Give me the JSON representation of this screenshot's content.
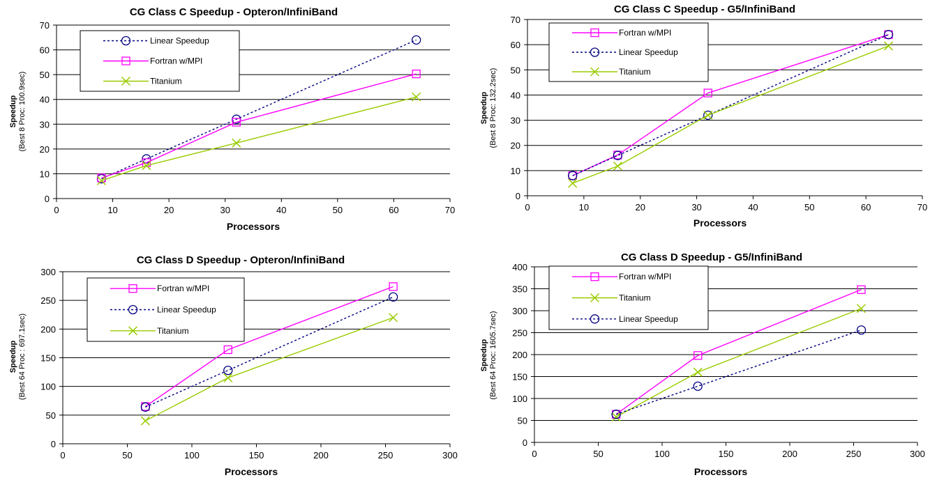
{
  "colors": {
    "fortran": "#ff00ff",
    "linear": "#000080",
    "titanium": "#99cc00",
    "grid": "#000000"
  },
  "chart_data": [
    {
      "type": "line",
      "title": "CG Class C Speedup - Opteron/InfiniBand",
      "xlabel": "Processors",
      "ylabel": "Speedup",
      "ylabel_sub": "(Best 8 Proc: 100.9sec)",
      "xlim": [
        0,
        70
      ],
      "ylim": [
        0,
        70
      ],
      "xticks": [
        0,
        10,
        20,
        30,
        40,
        50,
        60,
        70
      ],
      "yticks": [
        0,
        10,
        20,
        30,
        40,
        50,
        60,
        70
      ],
      "grid": "horizontal",
      "legend": "top-left",
      "legend_order": [
        "Linear Speedup",
        "Fortran w/MPI",
        "Titanium"
      ],
      "series": [
        {
          "name": "Linear Speedup",
          "style": "linear",
          "x": [
            8,
            16,
            32,
            64
          ],
          "y": [
            8,
            16,
            32,
            64
          ]
        },
        {
          "name": "Fortran w/MPI",
          "style": "fortran",
          "x": [
            8,
            16,
            32,
            64
          ],
          "y": [
            8.3,
            14.5,
            30.8,
            50.3
          ]
        },
        {
          "name": "Titanium",
          "style": "titanium",
          "x": [
            8,
            16,
            32,
            64
          ],
          "y": [
            7.2,
            13.3,
            22.4,
            41
          ]
        }
      ]
    },
    {
      "type": "line",
      "title": "CG Class C Speedup - G5/InfiniBand",
      "xlabel": "Processors",
      "ylabel": "Speedup",
      "ylabel_sub": "(Best 8 Proc: 132.2sec)",
      "xlim": [
        0,
        70
      ],
      "ylim": [
        0,
        70
      ],
      "xticks": [
        0,
        10,
        20,
        30,
        40,
        50,
        60,
        70
      ],
      "yticks": [
        0,
        10,
        20,
        30,
        40,
        50,
        60,
        70
      ],
      "grid": "horizontal",
      "legend": "top-left",
      "legend_order": [
        "Fortran w/MPI",
        "Linear Speedup",
        "Titanium"
      ],
      "series": [
        {
          "name": "Fortran w/MPI",
          "style": "fortran",
          "x": [
            8,
            16,
            32,
            64
          ],
          "y": [
            8,
            16.2,
            40.8,
            64
          ]
        },
        {
          "name": "Linear Speedup",
          "style": "linear",
          "x": [
            8,
            16,
            32,
            64
          ],
          "y": [
            8,
            16,
            32,
            64
          ]
        },
        {
          "name": "Titanium",
          "style": "titanium",
          "x": [
            8,
            16,
            32,
            64
          ],
          "y": [
            5,
            11.8,
            32,
            59.5
          ]
        }
      ]
    },
    {
      "type": "line",
      "title": "CG Class D Speedup - Opteron/InfiniBand",
      "xlabel": "Processors",
      "ylabel": "Speedup",
      "ylabel_sub": "(Best 64 Proc : 697.1sec)",
      "xlim": [
        0,
        300
      ],
      "ylim": [
        0,
        300
      ],
      "xticks": [
        0,
        50,
        100,
        150,
        200,
        250,
        300
      ],
      "yticks": [
        0,
        50,
        100,
        150,
        200,
        250,
        300
      ],
      "grid": "horizontal",
      "legend": "top-left",
      "legend_order": [
        "Fortran w/MPI",
        "Linear Speedup",
        "Titanium"
      ],
      "series": [
        {
          "name": "Fortran w/MPI",
          "style": "fortran",
          "x": [
            64,
            128,
            256
          ],
          "y": [
            65,
            164,
            274
          ]
        },
        {
          "name": "Linear Speedup",
          "style": "linear",
          "x": [
            64,
            128,
            256
          ],
          "y": [
            64,
            128,
            256
          ]
        },
        {
          "name": "Titanium",
          "style": "titanium",
          "x": [
            64,
            128,
            256
          ],
          "y": [
            40,
            115,
            220
          ]
        }
      ]
    },
    {
      "type": "line",
      "title": "CG Class D Speedup - G5/InfiniBand",
      "xlabel": "Processors",
      "ylabel": "Speedup",
      "ylabel_sub": "(Best 64 Proc: 1605.7sec)",
      "xlim": [
        0,
        300
      ],
      "ylim": [
        0,
        400
      ],
      "xticks": [
        0,
        50,
        100,
        150,
        200,
        250,
        300
      ],
      "yticks": [
        0,
        50,
        100,
        150,
        200,
        250,
        300,
        350,
        400
      ],
      "grid": "horizontal",
      "legend": "top-left",
      "legend_order": [
        "Fortran w/MPI",
        "Titanium",
        "Linear Speedup"
      ],
      "series": [
        {
          "name": "Fortran w/MPI",
          "style": "fortran",
          "x": [
            64,
            128,
            256
          ],
          "y": [
            64,
            198,
            348
          ]
        },
        {
          "name": "Titanium",
          "style": "titanium",
          "x": [
            64,
            128,
            256
          ],
          "y": [
            58,
            160,
            305
          ]
        },
        {
          "name": "Linear Speedup",
          "style": "linear",
          "x": [
            64,
            128,
            256
          ],
          "y": [
            64,
            128,
            256
          ]
        }
      ]
    }
  ]
}
